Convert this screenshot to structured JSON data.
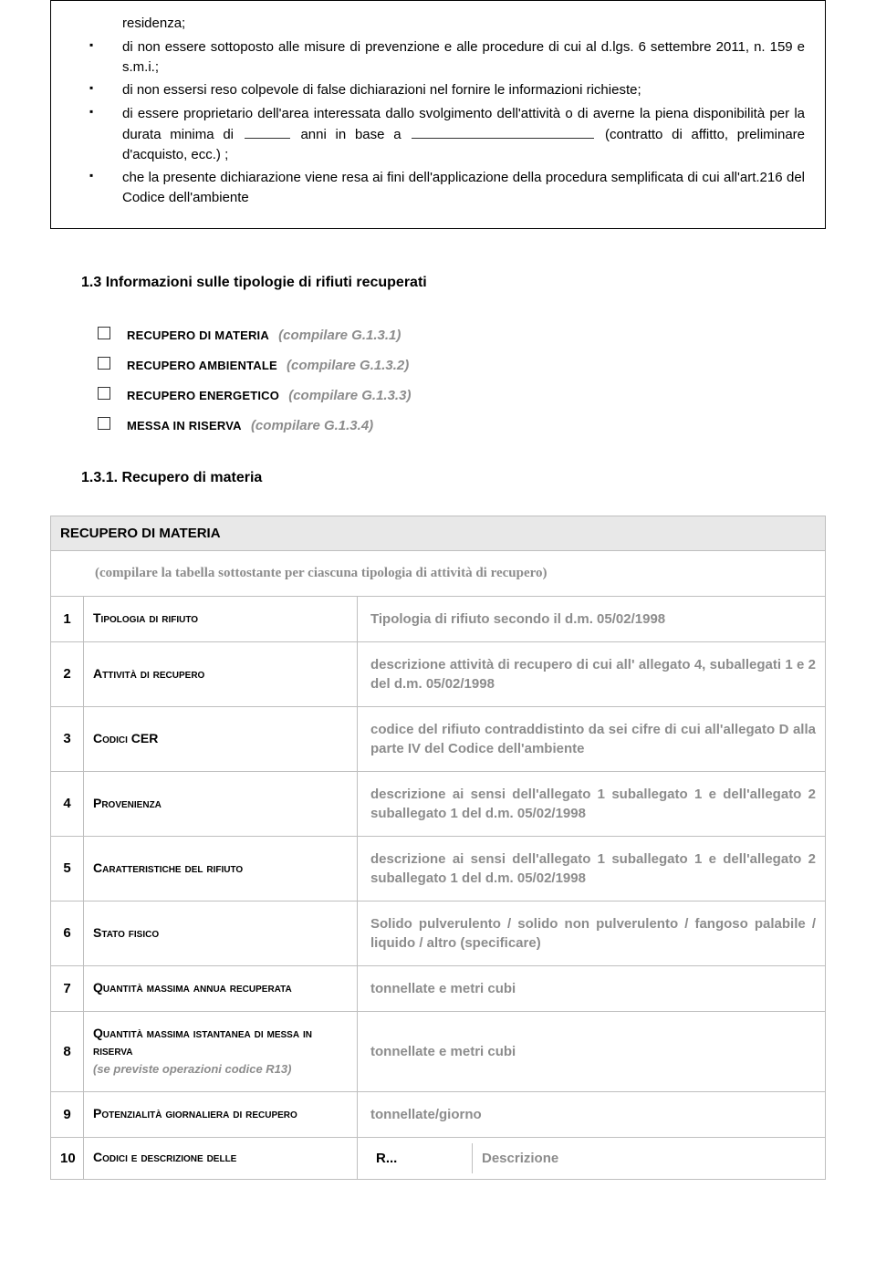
{
  "declarations": {
    "item0": "residenza;",
    "item1_a": "di non essere sottoposto alle misure di prevenzione e alle procedure di cui al d.lgs.  6 settembre 2011, n. 159 e s.m.i.;",
    "item2": "di non essersi reso colpevole di false dichiarazioni nel fornire le informazioni richieste;",
    "item3_a": "di essere proprietario dell'area interessata dallo svolgimento dell'attività o di averne la piena disponibilità per la durata minima di ",
    "item3_b": " anni in base a ",
    "item3_c": " (contratto di affitto, preliminare d'acquisto, ecc.) ;",
    "item4": "che la presente dichiarazione viene resa ai fini dell'applicazione della procedura semplificata di cui all'art.216 del  Codice dell'ambiente"
  },
  "section13": {
    "title": "1.3 Informazioni sulle tipologie di rifiuti recuperati",
    "items": [
      {
        "label": "RECUPERO DI MATERIA",
        "note": "(compilare G.1.3.1)"
      },
      {
        "label": "RECUPERO AMBIENTALE",
        "note": "(compilare G.1.3.2)"
      },
      {
        "label": "RECUPERO ENERGETICO",
        "note": "(compilare G.1.3.3)"
      },
      {
        "label": "MESSA IN RISERVA",
        "note": "(compilare G.1.3.4)"
      }
    ]
  },
  "section131": {
    "title": "1.3.1. Recupero di materia",
    "table_header": "RECUPERO DI MATERIA",
    "table_instr": "(compilare la tabella sottostante per ciascuna tipologia di attività di recupero)",
    "rows": [
      {
        "n": "1",
        "label": "Tipologia di rifiuto",
        "val": "Tipologia di rifiuto secondo il d.m. 05/02/1998"
      },
      {
        "n": "2",
        "label": "Attività di recupero",
        "val": "descrizione attività di recupero di cui all' allegato 4, suballegati 1 e 2 del d.m. 05/02/1998"
      },
      {
        "n": "3",
        "label": "Codici CER",
        "val": "codice del rifiuto contraddistinto da sei cifre di cui all'allegato D alla parte IV del Codice dell'ambiente"
      },
      {
        "n": "4",
        "label": "Provenienza",
        "val": "descrizione ai sensi dell'allegato 1 suballegato 1 e dell'allegato 2 suballegato 1 del d.m. 05/02/1998"
      },
      {
        "n": "5",
        "label": "Caratteristiche del rifiuto",
        "val": "descrizione ai sensi dell'allegato 1 suballegato 1 e dell'allegato 2 suballegato 1 del d.m. 05/02/1998"
      },
      {
        "n": "6",
        "label": "Stato fisico",
        "val": "Solido pulverulento / solido non pulverulento / fangoso palabile / liquido / altro (specificare)"
      },
      {
        "n": "7",
        "label": "Quantità massima annua recuperata",
        "val": "tonnellate e metri cubi"
      },
      {
        "n": "8",
        "label": "Quantità massima istantanea di messa in riserva",
        "sub": "(se previste operazioni codice R13)",
        "val": "tonnellate e metri cubi"
      },
      {
        "n": "9",
        "label": "Potenzialità giornaliera di recupero",
        "val": "tonnellate/giorno"
      },
      {
        "n": "10",
        "label": "Codici e descrizione delle",
        "val_a": "R...",
        "val_b": "Descrizione"
      }
    ]
  },
  "colors": {
    "grey": "#8c8c8c",
    "border": "#bfbfbf",
    "header_bg": "#e8e8e8"
  }
}
